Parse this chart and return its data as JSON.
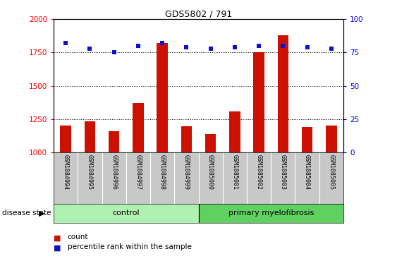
{
  "title": "GDS5802 / 791",
  "samples": [
    "GSM1084994",
    "GSM1084995",
    "GSM1084996",
    "GSM1084997",
    "GSM1084998",
    "GSM1084999",
    "GSM1085000",
    "GSM1085001",
    "GSM1085002",
    "GSM1085003",
    "GSM1085004",
    "GSM1085005"
  ],
  "counts": [
    1200,
    1235,
    1160,
    1370,
    1820,
    1195,
    1140,
    1305,
    1750,
    1880,
    1190,
    1200
  ],
  "percentiles": [
    82,
    78,
    75,
    80,
    82,
    79,
    78,
    79,
    80,
    80,
    79,
    78
  ],
  "groups": [
    "control",
    "control",
    "control",
    "control",
    "control",
    "control",
    "primary myelofibrosis",
    "primary myelofibrosis",
    "primary myelofibrosis",
    "primary myelofibrosis",
    "primary myelofibrosis",
    "primary myelofibrosis"
  ],
  "n_control": 6,
  "n_pmf": 6,
  "bar_color": "#CC1100",
  "dot_color": "#1010CC",
  "ylim_left": [
    1000,
    2000
  ],
  "ylim_right": [
    0,
    100
  ],
  "yticks_left": [
    1000,
    1250,
    1500,
    1750,
    2000
  ],
  "yticks_right": [
    0,
    25,
    50,
    75,
    100
  ],
  "disease_state_label": "disease state",
  "legend_count": "count",
  "legend_percentile": "percentile rank within the sample",
  "xaxis_bg": "#c8c8c8",
  "control_color": "#b0f0b0",
  "pmf_color": "#60d060",
  "control_label": "control",
  "pmf_label": "primary myelofibrosis",
  "dotted_yticks": [
    1250,
    1500,
    1750
  ]
}
